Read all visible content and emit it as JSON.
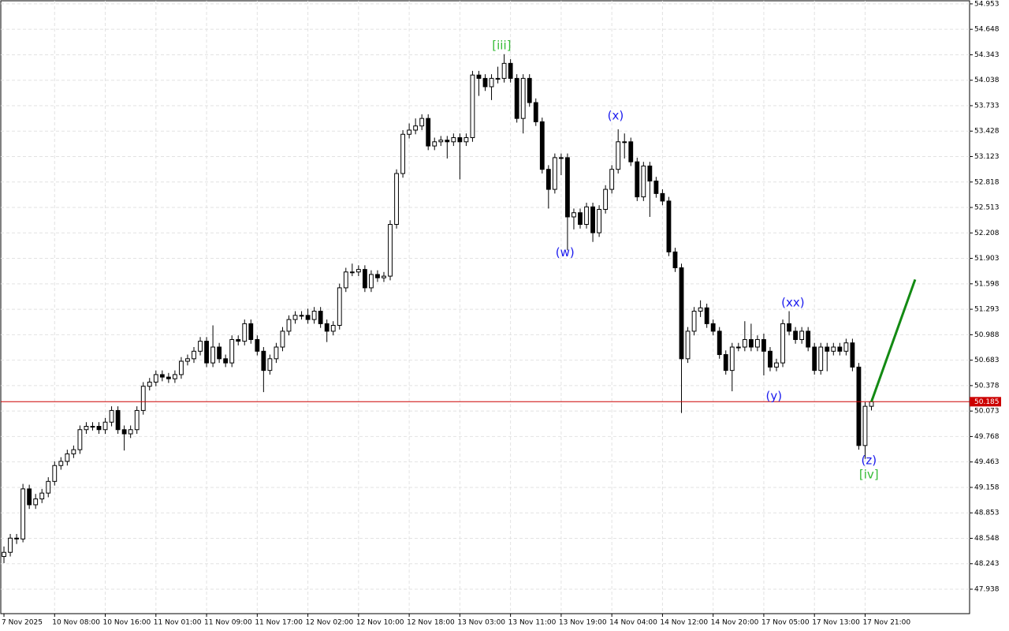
{
  "chart_data": {
    "type": "candlestick",
    "bull_color": "#ffffff",
    "bear_color": "#000000",
    "grid": true,
    "ylim": [
      47.645,
      54.99
    ],
    "yticks": [
      54.953,
      54.648,
      54.343,
      54.038,
      53.733,
      53.428,
      53.123,
      52.818,
      52.513,
      52.208,
      51.903,
      51.598,
      51.293,
      50.988,
      50.683,
      50.378,
      50.073,
      49.768,
      49.463,
      49.158,
      48.853,
      48.548,
      48.243,
      47.938
    ],
    "xlim": [
      -0.5,
      152.5
    ],
    "xticks": [
      {
        "value": 0,
        "label": "7 Nov 2025"
      },
      {
        "value": 8,
        "label": "10 Nov 08:00"
      },
      {
        "value": 16,
        "label": "10 Nov 16:00"
      },
      {
        "value": 24,
        "label": "11 Nov 01:00"
      },
      {
        "value": 32,
        "label": "11 Nov 09:00"
      },
      {
        "value": 40,
        "label": "11 Nov 17:00"
      },
      {
        "value": 48,
        "label": "12 Nov 02:00"
      },
      {
        "value": 56,
        "label": "12 Nov 10:00"
      },
      {
        "value": 64,
        "label": "12 Nov 18:00"
      },
      {
        "value": 72,
        "label": "13 Nov 03:00"
      },
      {
        "value": 80,
        "label": "13 Nov 11:00"
      },
      {
        "value": 88,
        "label": "13 Nov 19:00"
      },
      {
        "value": 96,
        "label": "14 Nov 04:00"
      },
      {
        "value": 104,
        "label": "14 Nov 12:00"
      },
      {
        "value": 112,
        "label": "14 Nov 20:00"
      },
      {
        "value": 120,
        "label": "17 Nov 05:00"
      },
      {
        "value": 128,
        "label": "17 Nov 13:00"
      },
      {
        "value": 136,
        "label": "17 Nov 21:00"
      }
    ],
    "open": [
      48.33,
      48.38,
      48.55,
      48.54,
      49.14,
      48.95,
      49.02,
      49.09,
      49.23,
      49.42,
      49.47,
      49.56,
      49.61,
      49.85,
      49.89,
      49.89,
      49.85,
      49.94,
      50.08,
      49.85,
      49.8,
      49.85,
      50.08,
      50.37,
      50.42,
      50.51,
      50.48,
      50.46,
      50.51,
      50.67,
      50.7,
      50.79,
      50.91,
      50.65,
      50.84,
      50.7,
      50.65,
      50.93,
      50.91,
      51.12,
      50.93,
      50.79,
      50.56,
      50.7,
      50.84,
      51.03,
      51.17,
      51.22,
      51.22,
      51.17,
      51.27,
      51.12,
      51.03,
      51.1,
      51.55,
      51.74,
      51.74,
      51.77,
      51.55,
      51.71,
      51.67,
      51.69,
      52.31,
      52.92,
      53.39,
      53.44,
      53.49,
      53.58,
      53.25,
      53.3,
      53.32,
      53.3,
      53.35,
      53.3,
      53.35,
      54.1,
      54.06,
      53.96,
      54.06,
      54.06,
      54.24,
      54.06,
      53.58,
      54.06,
      53.77,
      53.54,
      52.97,
      52.73,
      53.11,
      53.11,
      52.4,
      52.45,
      52.31,
      52.52,
      52.21,
      52.49,
      52.73,
      52.97,
      53.3,
      53.3,
      53.06,
      52.64,
      53.01,
      52.83,
      52.68,
      52.59,
      51.98,
      51.79,
      50.7,
      51.03,
      51.27,
      51.31,
      51.12,
      51.03,
      50.75,
      50.56,
      50.84,
      50.84,
      50.93,
      50.84,
      50.93,
      50.79,
      50.6,
      50.65,
      51.12,
      51.03,
      50.93,
      51.03,
      50.84,
      50.56,
      50.84,
      50.79,
      50.84,
      50.79,
      50.89,
      50.6,
      49.66,
      50.13
    ],
    "high": [
      48.45,
      48.6,
      48.6,
      49.2,
      49.19,
      49.08,
      49.14,
      49.28,
      49.47,
      49.52,
      49.61,
      49.66,
      49.9,
      49.94,
      49.94,
      49.94,
      49.99,
      50.13,
      50.13,
      49.9,
      49.9,
      50.13,
      50.42,
      50.47,
      50.56,
      50.56,
      50.53,
      50.56,
      50.72,
      50.75,
      50.84,
      50.96,
      50.96,
      51.1,
      50.89,
      50.75,
      50.98,
      50.98,
      51.17,
      51.17,
      50.98,
      50.84,
      50.75,
      50.89,
      51.08,
      51.22,
      51.27,
      51.27,
      51.3,
      51.32,
      51.32,
      51.17,
      51.15,
      51.6,
      51.79,
      51.84,
      51.82,
      51.82,
      51.76,
      51.76,
      51.74,
      52.36,
      52.97,
      53.44,
      53.52,
      53.58,
      53.63,
      53.63,
      53.35,
      53.37,
      53.37,
      53.4,
      53.4,
      53.4,
      54.15,
      54.15,
      54.11,
      54.11,
      54.2,
      54.35,
      54.29,
      54.11,
      54.11,
      54.11,
      53.82,
      53.59,
      53.02,
      53.16,
      53.16,
      53.16,
      52.5,
      52.5,
      52.57,
      52.57,
      52.54,
      52.78,
      53.02,
      53.45,
      53.4,
      53.35,
      53.11,
      53.06,
      53.06,
      52.88,
      52.73,
      52.64,
      52.03,
      51.84,
      51.08,
      51.32,
      51.4,
      51.36,
      51.17,
      51.08,
      50.8,
      50.89,
      50.89,
      51.15,
      51.12,
      50.98,
      51.0,
      50.84,
      50.7,
      51.17,
      51.27,
      51.08,
      51.08,
      51.08,
      50.89,
      50.89,
      50.89,
      50.89,
      50.89,
      50.94,
      50.94,
      50.65,
      50.18,
      50.22
    ],
    "low": [
      48.25,
      48.33,
      48.48,
      48.5,
      48.9,
      48.9,
      48.97,
      49.04,
      49.18,
      49.37,
      49.42,
      49.51,
      49.56,
      49.8,
      49.84,
      49.8,
      49.8,
      49.89,
      49.8,
      49.6,
      49.75,
      49.8,
      50.03,
      50.32,
      50.37,
      50.43,
      50.41,
      50.41,
      50.46,
      50.62,
      50.65,
      50.74,
      50.6,
      50.6,
      50.65,
      50.6,
      50.6,
      50.86,
      50.86,
      50.88,
      50.74,
      50.3,
      50.51,
      50.65,
      50.79,
      50.98,
      51.12,
      51.17,
      51.12,
      51.12,
      51.07,
      50.9,
      50.98,
      51.05,
      51.5,
      51.69,
      51.69,
      51.5,
      51.5,
      51.62,
      51.62,
      51.64,
      52.26,
      52.87,
      53.34,
      53.39,
      53.44,
      53.2,
      53.2,
      53.25,
      53.1,
      53.25,
      52.85,
      53.25,
      53.3,
      53.85,
      53.91,
      53.8,
      54.0,
      54.01,
      54.01,
      53.53,
      53.4,
      53.72,
      53.49,
      52.92,
      52.5,
      52.68,
      52.9,
      52.0,
      52.25,
      52.26,
      52.26,
      52.1,
      52.16,
      52.44,
      52.68,
      52.92,
      53.1,
      53.01,
      52.59,
      52.59,
      52.4,
      52.63,
      52.54,
      51.93,
      51.74,
      50.05,
      50.65,
      50.98,
      51.2,
      51.07,
      50.98,
      50.7,
      50.51,
      50.31,
      50.79,
      50.79,
      50.79,
      50.79,
      50.5,
      50.55,
      50.55,
      50.6,
      50.98,
      50.88,
      50.88,
      50.79,
      50.51,
      50.51,
      50.55,
      50.74,
      50.74,
      50.74,
      50.55,
      49.61,
      49.5,
      50.08
    ],
    "close": [
      48.38,
      48.55,
      48.54,
      49.14,
      48.95,
      49.02,
      49.09,
      49.23,
      49.42,
      49.47,
      49.56,
      49.61,
      49.85,
      49.89,
      49.89,
      49.85,
      49.94,
      50.08,
      49.85,
      49.8,
      49.85,
      50.08,
      50.37,
      50.42,
      50.51,
      50.48,
      50.46,
      50.51,
      50.67,
      50.7,
      50.79,
      50.91,
      50.65,
      50.84,
      50.7,
      50.65,
      50.93,
      50.91,
      51.12,
      50.93,
      50.79,
      50.56,
      50.7,
      50.84,
      51.03,
      51.17,
      51.22,
      51.22,
      51.17,
      51.27,
      51.12,
      51.03,
      51.1,
      51.55,
      51.74,
      51.74,
      51.77,
      51.55,
      51.71,
      51.67,
      51.69,
      52.31,
      52.92,
      53.39,
      53.44,
      53.49,
      53.58,
      53.25,
      53.3,
      53.32,
      53.3,
      53.35,
      53.3,
      53.35,
      54.1,
      54.06,
      53.96,
      54.06,
      54.06,
      54.24,
      54.06,
      53.58,
      54.06,
      53.77,
      53.54,
      52.97,
      52.73,
      53.11,
      53.11,
      52.4,
      52.45,
      52.31,
      52.52,
      52.21,
      52.49,
      52.73,
      52.97,
      53.3,
      53.3,
      53.06,
      52.64,
      53.01,
      52.83,
      52.68,
      52.59,
      51.98,
      51.79,
      50.7,
      51.03,
      51.27,
      51.31,
      51.12,
      51.03,
      50.75,
      50.56,
      50.84,
      50.84,
      50.93,
      50.84,
      50.93,
      50.79,
      50.6,
      50.65,
      51.12,
      51.03,
      50.93,
      51.03,
      50.84,
      50.56,
      50.84,
      50.79,
      50.84,
      50.79,
      50.89,
      50.6,
      49.66,
      50.13,
      50.185
    ],
    "last_price": 50.185,
    "last_price_color": "#cc0000",
    "projection": {
      "color": "#138a13",
      "x": [
        137,
        143.9
      ],
      "y": [
        50.185,
        51.65
      ]
    },
    "annotations": [
      {
        "text": "[iii]",
        "x": 78.6,
        "y": 54.45,
        "color": "#33bb33"
      },
      {
        "text": "(x)",
        "x": 96.6,
        "y": 53.61,
        "color": "#1a1aee"
      },
      {
        "text": "(w)",
        "x": 88.6,
        "y": 51.97,
        "color": "#1a1aee"
      },
      {
        "text": "(xx)",
        "x": 124.6,
        "y": 51.37,
        "color": "#1a1aee"
      },
      {
        "text": "(y)",
        "x": 121.6,
        "y": 50.25,
        "color": "#1a1aee"
      },
      {
        "text": "(z)",
        "x": 136.6,
        "y": 49.48,
        "color": "#1a1aee"
      },
      {
        "text": "[iv]",
        "x": 136.6,
        "y": 49.31,
        "color": "#33bb33"
      }
    ]
  }
}
